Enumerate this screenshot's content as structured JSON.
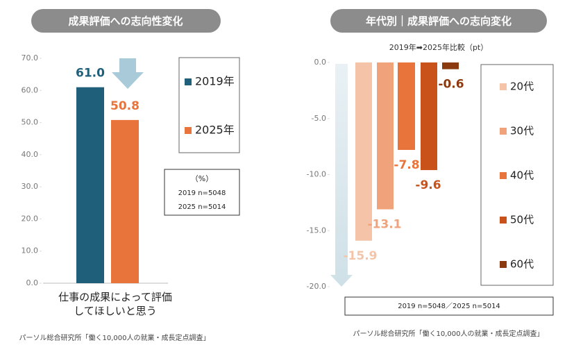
{
  "chart_data": [
    {
      "type": "bar",
      "title": "成果評価への志向性変化",
      "categories": [
        "仕事の成果によって評価してほしいと思う"
      ],
      "series": [
        {
          "name": "2019年",
          "color": "#1f5f7a",
          "values": [
            61.0
          ],
          "value_labels": [
            "61.0"
          ]
        },
        {
          "name": "2025年",
          "color": "#e8743b",
          "values": [
            50.8
          ],
          "value_labels": [
            "50.8"
          ]
        }
      ],
      "ylim": [
        0,
        70
      ],
      "yticks": [
        {
          "value": 0,
          "label": "0.0"
        },
        {
          "value": 10,
          "label": "10.0"
        },
        {
          "value": 20,
          "label": "20.0"
        },
        {
          "value": 30,
          "label": "30.0"
        },
        {
          "value": 40,
          "label": "40.0"
        },
        {
          "value": 50,
          "label": "50.0"
        },
        {
          "value": 60,
          "label": "60.0"
        },
        {
          "value": 70,
          "label": "70.0"
        }
      ],
      "notes": [
        "（%）",
        "2019 n=5048",
        "2025 n=5014"
      ],
      "source": "パーソル総合研究所「働く10,000人の就業・成長定点調査」"
    },
    {
      "type": "bar",
      "title": "年代別｜成果評価への志向変化",
      "subtitle": "2019年➡2025年比較（pt）",
      "series": [
        {
          "name": "20代",
          "color": "#f5c4a8",
          "values": [
            -15.9
          ],
          "value_labels": [
            "-15.9"
          ]
        },
        {
          "name": "30代",
          "color": "#f0a27a",
          "values": [
            -13.1
          ],
          "value_labels": [
            "-13.1"
          ]
        },
        {
          "name": "40代",
          "color": "#e8743b",
          "values": [
            -7.8
          ],
          "value_labels": [
            "-7.8"
          ]
        },
        {
          "name": "50代",
          "color": "#c8521a",
          "values": [
            -9.6
          ],
          "value_labels": [
            "-9.6"
          ]
        },
        {
          "name": "60代",
          "color": "#8a3a0e",
          "values": [
            -0.6
          ],
          "value_labels": [
            "-0.6"
          ]
        }
      ],
      "ylim": [
        -20,
        0
      ],
      "yticks": [
        {
          "value": 0,
          "label": "0.0"
        },
        {
          "value": -5,
          "label": "-5.0"
        },
        {
          "value": -10,
          "label": "-10.0"
        },
        {
          "value": -15,
          "label": "-15.0"
        },
        {
          "value": -20,
          "label": "-20.0"
        }
      ],
      "notes": [
        "2019 n=5048／2025 n=5014"
      ],
      "source": "パーソル総合研究所「働く10,000人の就業・成長定点調査」"
    }
  ]
}
